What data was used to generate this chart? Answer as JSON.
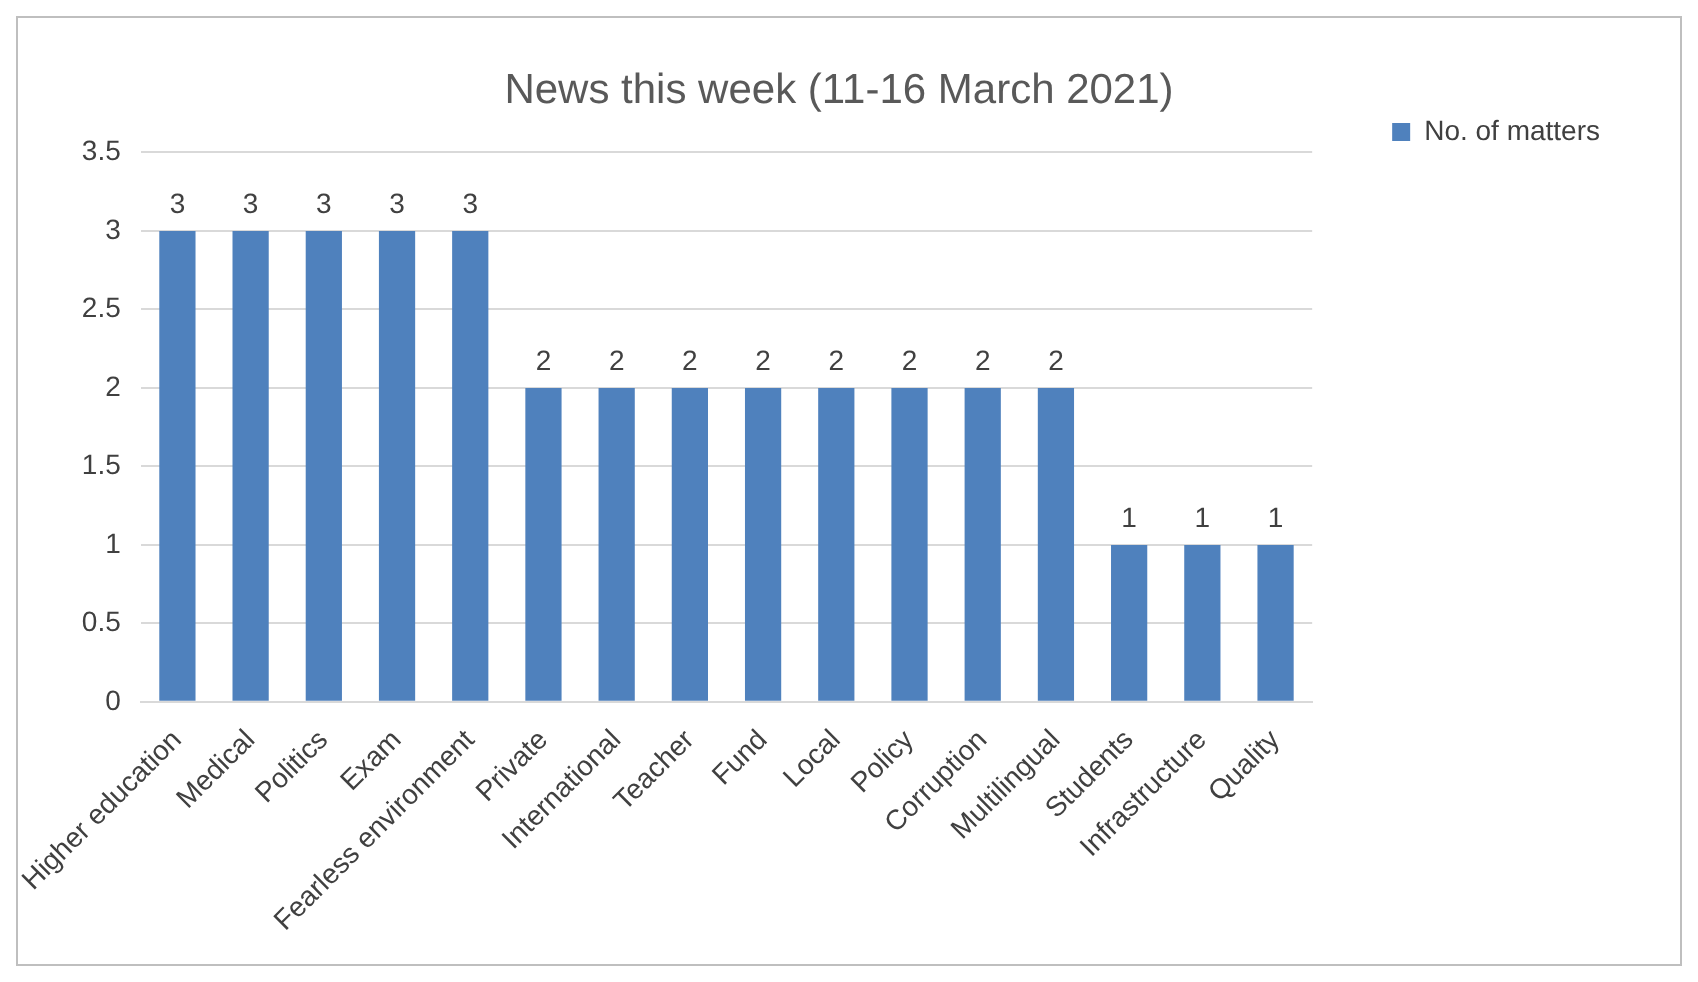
{
  "chart_data": {
    "type": "bar",
    "title": "News this week (11-16 March 2021)",
    "categories": [
      "Higher education",
      "Medical",
      "Politics",
      "Exam",
      "Fearless environment",
      "Private",
      "International",
      "Teacher",
      "Fund",
      "Local",
      "Policy",
      "Corruption",
      "Multilingual",
      "Students",
      "Infrastructure",
      "Quality"
    ],
    "series": [
      {
        "name": "No. of matters",
        "color": "#4f81bd",
        "values": [
          3,
          3,
          3,
          3,
          3,
          2,
          2,
          2,
          2,
          2,
          2,
          2,
          2,
          1,
          1,
          1
        ]
      }
    ],
    "ylim": [
      0,
      3.5
    ],
    "yticks": [
      0,
      0.5,
      1,
      1.5,
      2,
      2.5,
      3,
      3.5
    ],
    "grid": "y",
    "legend": "top right",
    "data_labels": true
  }
}
